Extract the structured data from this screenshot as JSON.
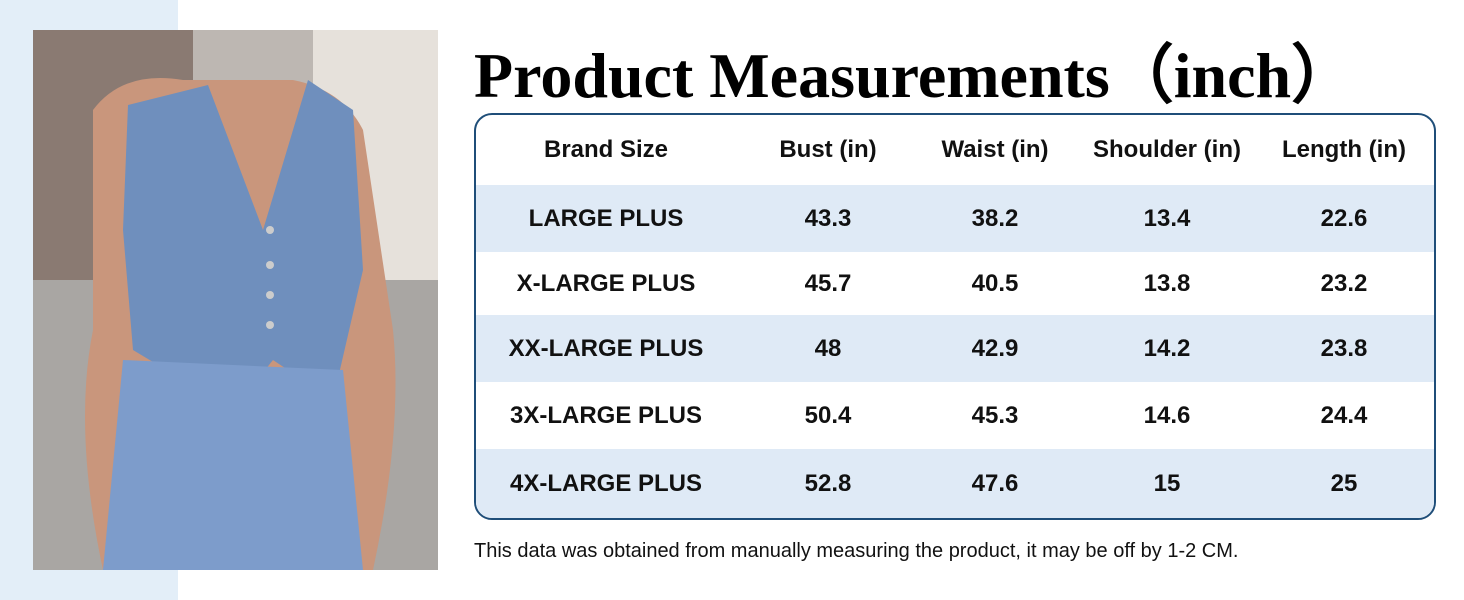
{
  "header": {
    "title": "Product Measurements（inch）"
  },
  "table": {
    "columns": [
      "Brand Size",
      "Bust (in)",
      "Waist (in)",
      "Shoulder (in)",
      "Length (in)"
    ],
    "rows": [
      [
        "LARGE PLUS",
        43.3,
        38.2,
        13.4,
        22.6
      ],
      [
        "X-LARGE PLUS",
        45.7,
        40.5,
        13.8,
        23.2
      ],
      [
        "XX-LARGE PLUS",
        48,
        42.9,
        14.2,
        23.8
      ],
      [
        "3X-LARGE PLUS",
        50.4,
        45.3,
        14.6,
        24.4
      ],
      [
        "4X-LARGE PLUS",
        52.8,
        47.6,
        15,
        25
      ]
    ]
  },
  "footnote": "This data was obtained from manually measuring the product, it may be off by 1-2 CM."
}
